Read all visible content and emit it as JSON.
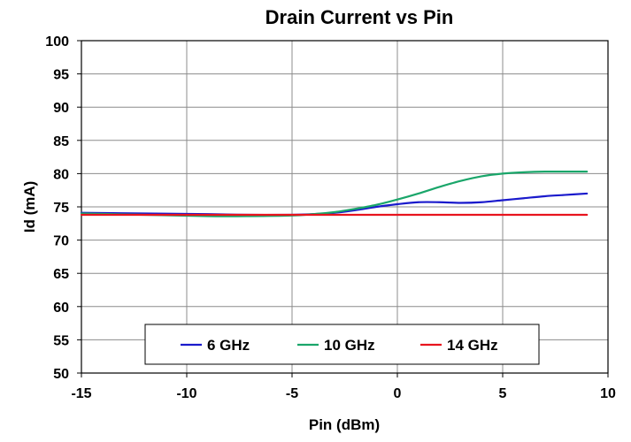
{
  "chart_data": {
    "type": "line",
    "title": "Drain Current vs Pin",
    "xlabel": "Pin (dBm)",
    "ylabel": "Id (mA)",
    "xlim": [
      -15,
      10
    ],
    "ylim": [
      50,
      100
    ],
    "xticks": [
      -15,
      -10,
      -5,
      0,
      5,
      10
    ],
    "yticks": [
      50,
      55,
      60,
      65,
      70,
      75,
      80,
      85,
      90,
      95,
      100
    ],
    "grid": true,
    "legend_position": "bottom-center",
    "series": [
      {
        "name": "6 GHz",
        "color": "#1a1acc",
        "x": [
          -15,
          -12,
          -9,
          -7,
          -5,
          -4,
          -3,
          -2,
          -1,
          0,
          1,
          2,
          3,
          4,
          5,
          6,
          7,
          8,
          9
        ],
        "y": [
          74.1,
          74.0,
          73.9,
          73.8,
          73.8,
          73.9,
          74.1,
          74.5,
          75.0,
          75.4,
          75.7,
          75.7,
          75.6,
          75.7,
          76.0,
          76.3,
          76.6,
          76.8,
          77.0
        ]
      },
      {
        "name": "10 GHz",
        "color": "#1aa66a",
        "x": [
          -15,
          -12,
          -9,
          -7,
          -5,
          -4,
          -3,
          -2,
          -1,
          0,
          1,
          2,
          3,
          4,
          5,
          6,
          7,
          8,
          9
        ],
        "y": [
          74.0,
          73.8,
          73.6,
          73.6,
          73.7,
          73.9,
          74.2,
          74.7,
          75.3,
          76.1,
          77.0,
          78.0,
          78.9,
          79.6,
          80.0,
          80.2,
          80.3,
          80.3,
          80.3
        ]
      },
      {
        "name": "14 GHz",
        "color": "#e8141e",
        "x": [
          -15,
          -10,
          -5,
          0,
          5,
          9
        ],
        "y": [
          73.8,
          73.8,
          73.8,
          73.8,
          73.8,
          73.8
        ]
      }
    ]
  }
}
